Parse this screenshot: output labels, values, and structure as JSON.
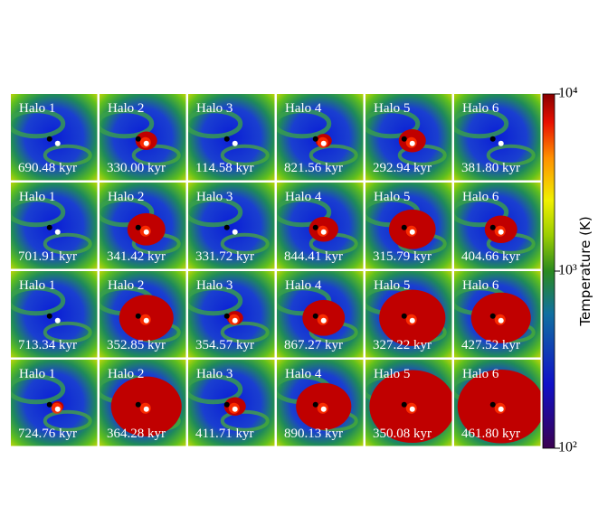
{
  "panels": [
    [
      {
        "label": "Halo 1",
        "time": "690.48 kyr"
      },
      {
        "label": "Halo 2",
        "time": "330.00 kyr"
      },
      {
        "label": "Halo 3",
        "time": "114.58 kyr"
      },
      {
        "label": "Halo 4",
        "time": "821.56 kyr"
      },
      {
        "label": "Halo 5",
        "time": "292.94 kyr"
      },
      {
        "label": "Halo 6",
        "time": "381.80 kyr"
      }
    ],
    [
      {
        "label": "Halo 1",
        "time": "701.91 kyr"
      },
      {
        "label": "Halo 2",
        "time": "341.42 kyr"
      },
      {
        "label": "Halo 3",
        "time": "331.72 kyr"
      },
      {
        "label": "Halo 4",
        "time": "844.41 kyr"
      },
      {
        "label": "Halo 5",
        "time": "315.79 kyr"
      },
      {
        "label": "Halo 6",
        "time": "404.66 kyr"
      }
    ],
    [
      {
        "label": "Halo 1",
        "time": "713.34 kyr"
      },
      {
        "label": "Halo 2",
        "time": "352.85 kyr"
      },
      {
        "label": "Halo 3",
        "time": "354.57 kyr"
      },
      {
        "label": "Halo 4",
        "time": "867.27 kyr"
      },
      {
        "label": "Halo 5",
        "time": "327.22 kyr"
      },
      {
        "label": "Halo 6",
        "time": "427.52 kyr"
      }
    ],
    [
      {
        "label": "Halo 1",
        "time": "724.76 kyr"
      },
      {
        "label": "Halo 2",
        "time": "364.28 kyr"
      },
      {
        "label": "Halo 3",
        "time": "411.71 kyr"
      },
      {
        "label": "Halo 4",
        "time": "890.13 kyr"
      },
      {
        "label": "Halo 5",
        "time": "350.08 kyr"
      },
      {
        "label": "Halo 6",
        "time": "461.80 kyr"
      }
    ]
  ],
  "colorbar": {
    "label": "Temperature  (K)",
    "clim": [
      100,
      10000
    ],
    "log_scale": true,
    "ticks": [
      {
        "value": 100,
        "label": "10²"
      },
      {
        "value": 1000,
        "label": "10³"
      },
      {
        "value": 10000,
        "label": "10⁴"
      }
    ]
  }
}
